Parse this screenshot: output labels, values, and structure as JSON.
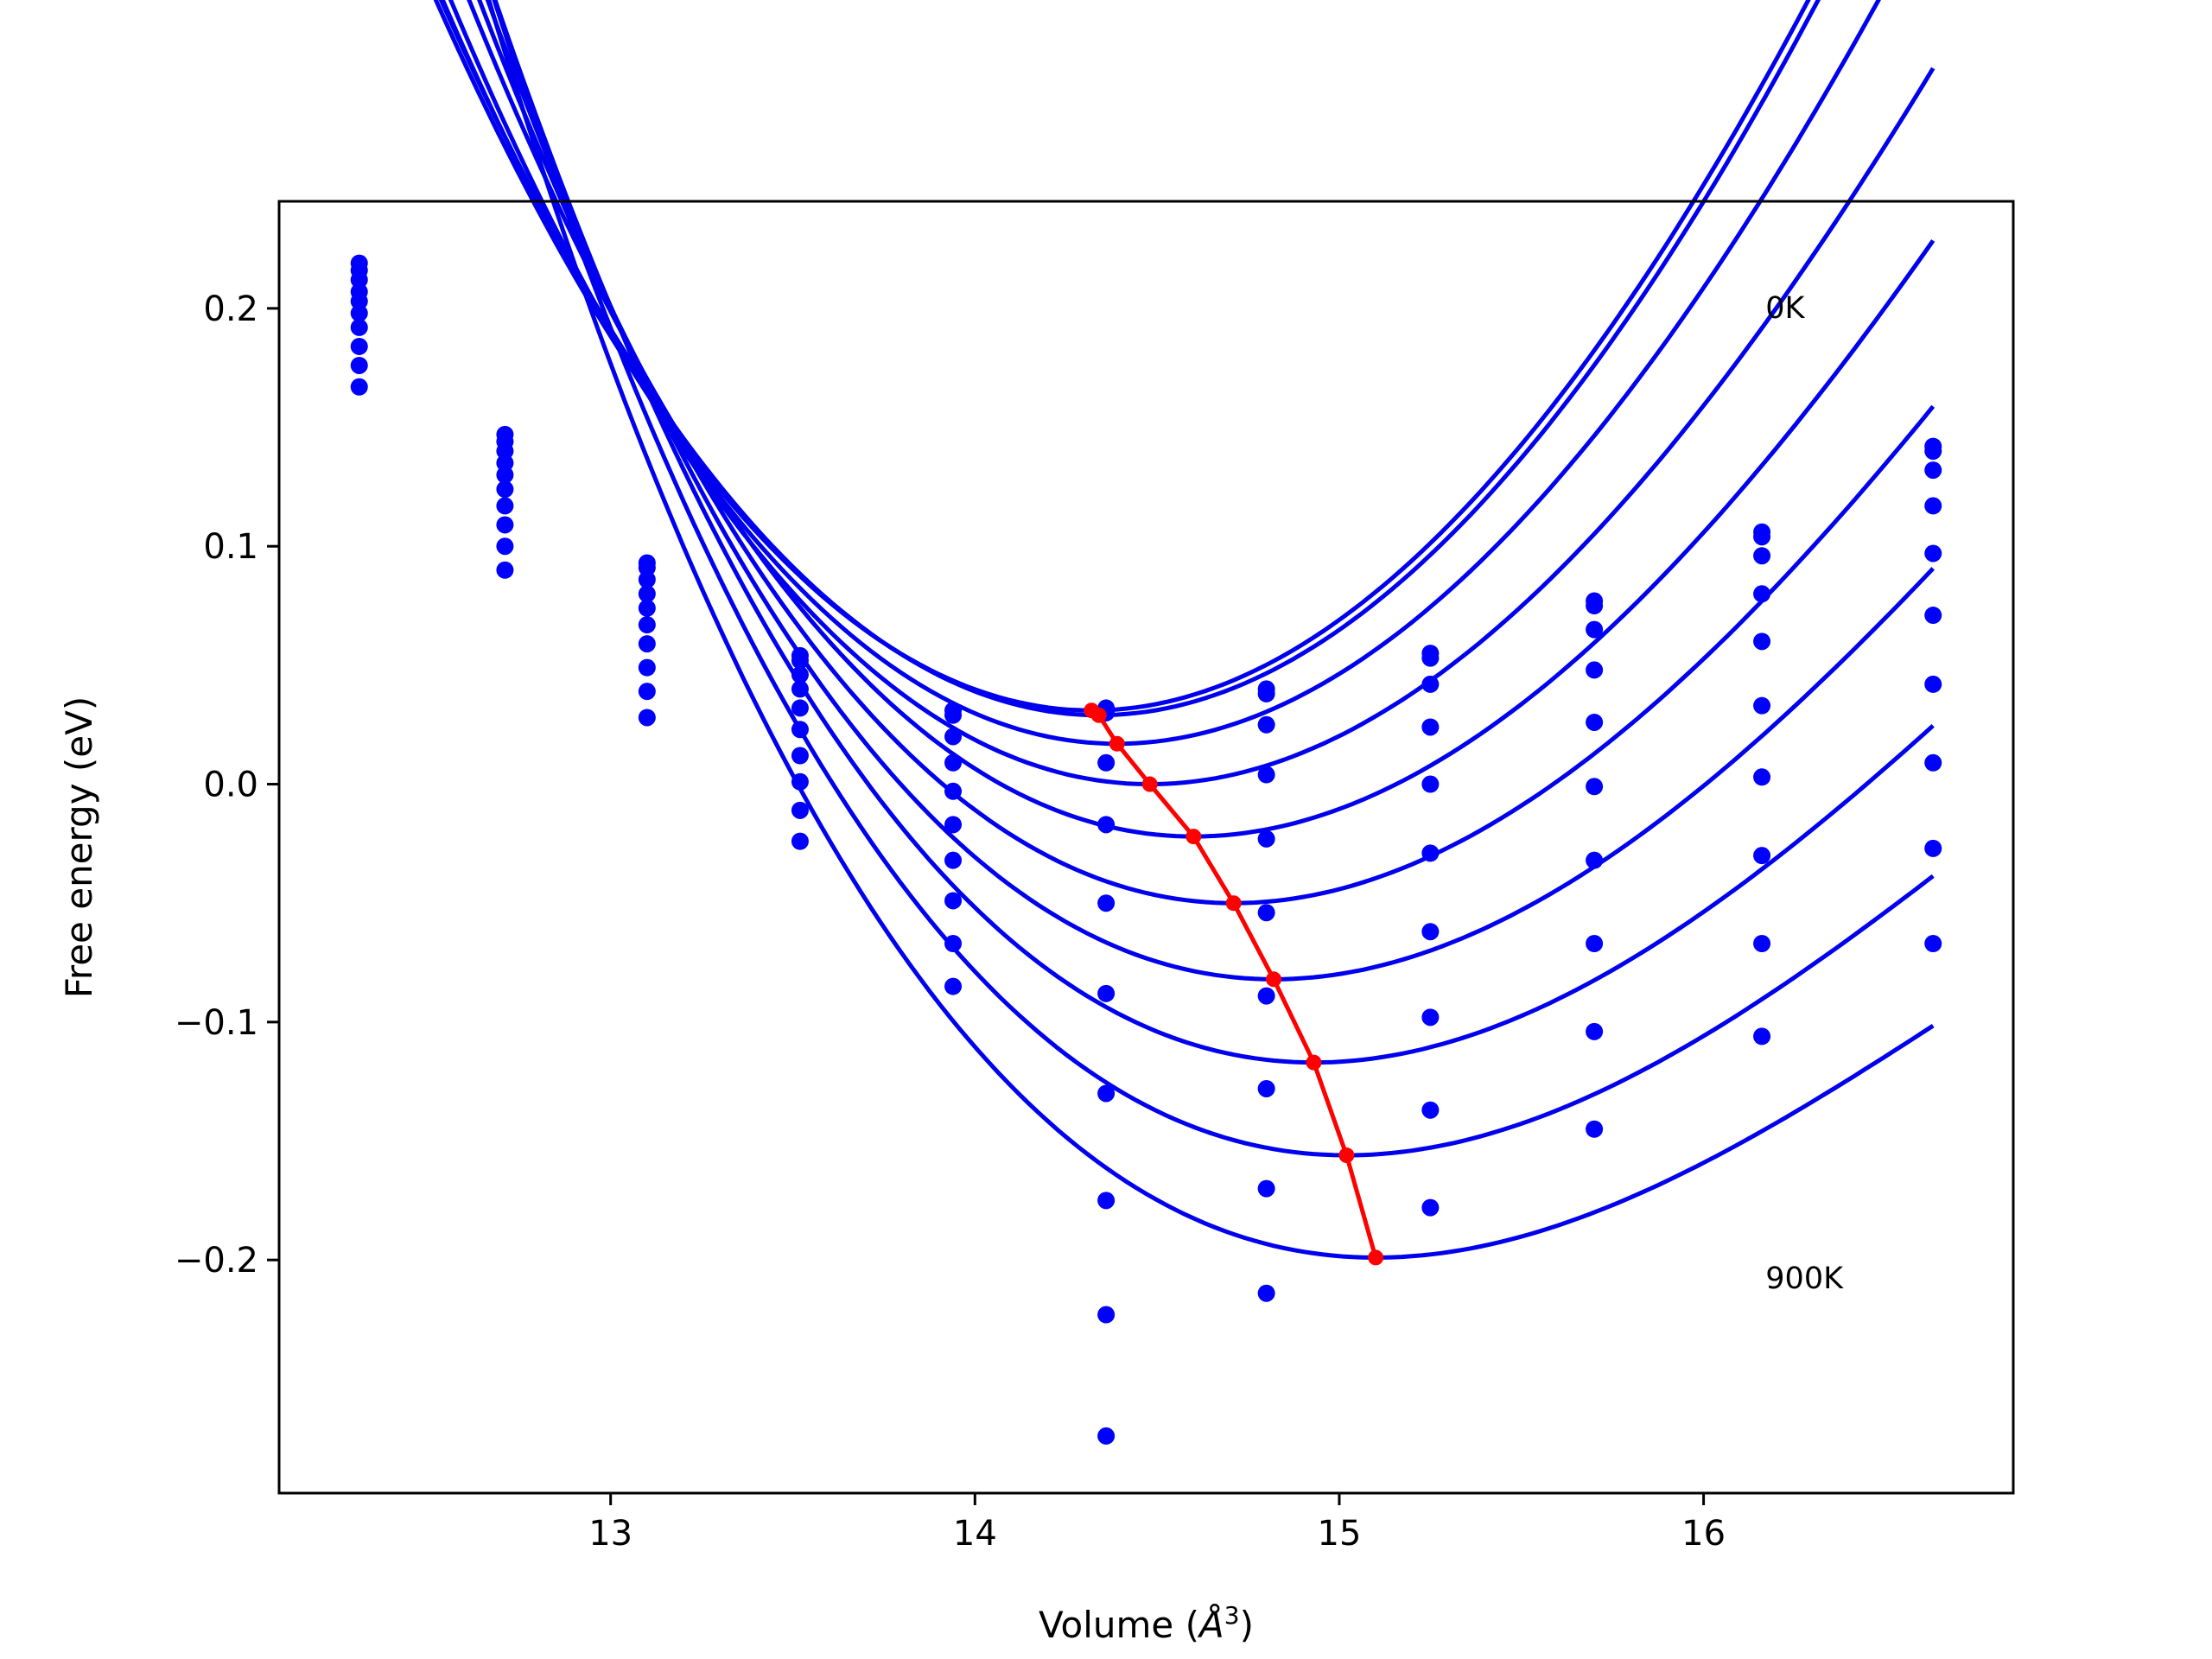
{
  "chart_data": {
    "type": "scatter",
    "title": "",
    "xlabel_prefix": "Volume (",
    "xlabel_unit": "Å",
    "xlabel_exp": "3",
    "xlabel_suffix": ")",
    "ylabel": "Free energy (eV)",
    "xlim": [
      12.09,
      16.85
    ],
    "ylim": [
      -0.298,
      0.245
    ],
    "xticks": [
      13,
      14,
      15,
      16
    ],
    "xtick_labels": [
      "13",
      "14",
      "15",
      "16"
    ],
    "yticks": [
      0.2,
      0.1,
      0.0,
      -0.1,
      -0.2
    ],
    "ytick_labels": [
      "0.2",
      "0.1",
      "0.0",
      "−0.1",
      "−0.2"
    ],
    "grid": false,
    "annotations": [
      {
        "text": "0K",
        "x": 16.17,
        "y": 0.196
      },
      {
        "text": "900K",
        "x": 16.17,
        "y": -0.212
      }
    ],
    "colors": {
      "data": "#0000ff",
      "curve": "#0000ee",
      "minima": "#ff0000"
    },
    "volumes": [
      12.31,
      12.71,
      13.1,
      13.52,
      13.94,
      14.36,
      14.8,
      15.25,
      15.7,
      16.16,
      16.63
    ],
    "series": [
      {
        "values": [
          0.219,
          0.147,
          0.093,
          0.054,
          0.031,
          0.032,
          0.04,
          0.055,
          0.077,
          0.106,
          0.142
        ]
      },
      {
        "values": [
          0.216,
          0.144,
          0.091,
          0.052,
          0.029,
          0.03,
          0.038,
          0.053,
          0.075,
          0.104,
          0.14
        ]
      },
      {
        "values": [
          0.212,
          0.14,
          0.086,
          0.046,
          0.02,
          0.009,
          0.025,
          0.042,
          0.065,
          0.096,
          0.132
        ]
      },
      {
        "values": [
          0.207,
          0.135,
          0.08,
          0.04,
          0.009,
          -0.017,
          0.004,
          0.024,
          0.048,
          0.08,
          0.117
        ]
      },
      {
        "values": [
          0.203,
          0.13,
          0.074,
          0.032,
          -0.003,
          -0.05,
          -0.023,
          0.0,
          0.026,
          0.06,
          0.097
        ]
      },
      {
        "values": [
          0.198,
          0.124,
          0.067,
          0.023,
          -0.017,
          -0.088,
          -0.054,
          -0.029,
          -0.001,
          0.033,
          0.071
        ]
      },
      {
        "values": [
          0.192,
          0.117,
          0.059,
          0.012,
          -0.032,
          -0.13,
          -0.089,
          -0.062,
          -0.032,
          0.003,
          0.042
        ]
      },
      {
        "values": [
          0.184,
          0.109,
          0.049,
          0.001,
          -0.049,
          -0.175,
          -0.128,
          -0.098,
          -0.067,
          -0.03,
          0.009
        ]
      },
      {
        "values": [
          0.176,
          0.1,
          0.039,
          -0.011,
          -0.067,
          -0.223,
          -0.17,
          -0.137,
          -0.104,
          -0.067,
          -0.027
        ]
      },
      {
        "values": [
          0.167,
          0.09,
          0.028,
          -0.024,
          -0.085,
          -0.274,
          -0.214,
          -0.178,
          -0.145,
          -0.106,
          -0.067
        ]
      }
    ],
    "fits": [
      {
        "v0": 14.34,
        "f0": 0.029,
        "b": 0.085,
        "c": -0.004
      },
      {
        "v0": 14.32,
        "f0": 0.031,
        "b": 0.085,
        "c": -0.004
      },
      {
        "v0": 14.39,
        "f0": 0.017,
        "b": 0.082,
        "c": -0.005
      },
      {
        "v0": 14.48,
        "f0": 0.0,
        "b": 0.078,
        "c": -0.006
      },
      {
        "v0": 14.6,
        "f0": -0.022,
        "b": 0.075,
        "c": -0.007
      },
      {
        "v0": 14.71,
        "f0": -0.05,
        "b": 0.072,
        "c": -0.008
      },
      {
        "v0": 14.82,
        "f0": -0.082,
        "b": 0.069,
        "c": -0.009
      },
      {
        "v0": 14.93,
        "f0": -0.117,
        "b": 0.066,
        "c": -0.01
      },
      {
        "v0": 15.02,
        "f0": -0.156,
        "b": 0.063,
        "c": -0.011
      },
      {
        "v0": 15.1,
        "f0": -0.199,
        "b": 0.06,
        "c": -0.012
      }
    ],
    "fit_range": [
      12.31,
      16.63
    ],
    "minima": {
      "x": [
        14.32,
        14.34,
        14.39,
        14.48,
        14.6,
        14.71,
        14.82,
        14.93,
        15.02,
        15.1
      ],
      "y": [
        0.031,
        0.029,
        0.017,
        0.0,
        -0.022,
        -0.05,
        -0.082,
        -0.117,
        -0.156,
        -0.199
      ]
    }
  }
}
